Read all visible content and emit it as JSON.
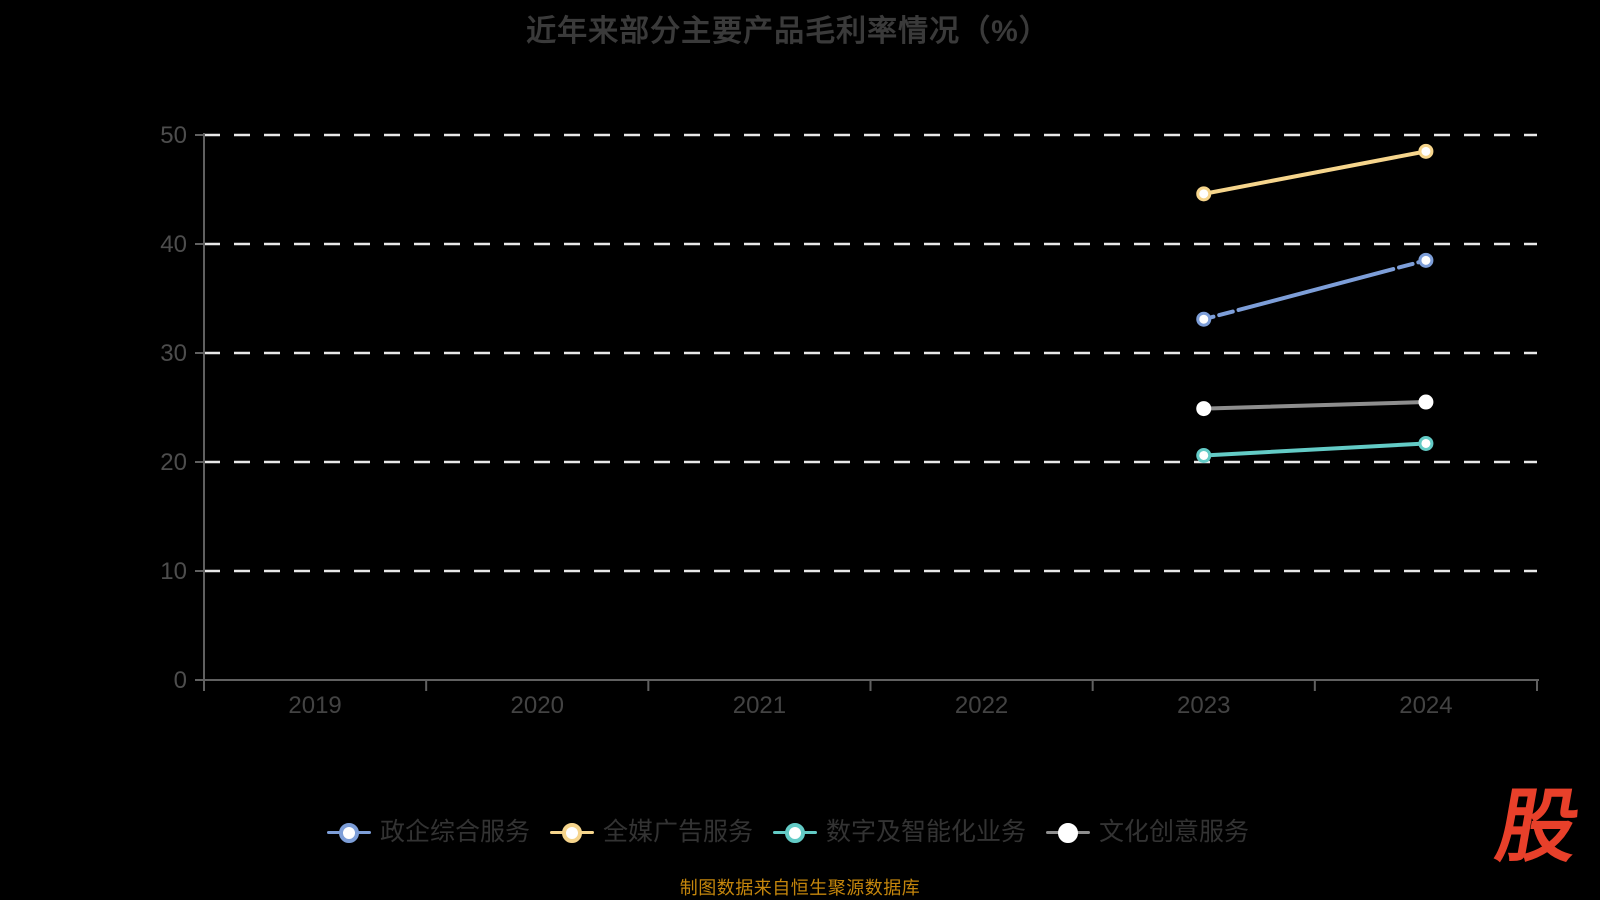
{
  "title": "近年来部分主要产品毛利率情况（%）",
  "source_note": "制图数据来自恒生聚源数据库",
  "logo_text": "股",
  "colors": {
    "background": "#000000",
    "title_text": "#3a3a3a",
    "legend_text": "#333333",
    "axis_line": "#606060",
    "y_axis_label": "#4d4d4d",
    "x_axis_label": "#434343",
    "gridline": "#e8e8e8",
    "source_text": "#c5860c",
    "logo_red": "#e8402a",
    "marker_fill": "#ffffff"
  },
  "chart_data": {
    "type": "line",
    "title": "近年来部分主要产品毛利率情况（%）",
    "categories": [
      "2019",
      "2020",
      "2021",
      "2022",
      "2023",
      "2024"
    ],
    "yticks": [
      0,
      10,
      20,
      30,
      40,
      50
    ],
    "ylim": [
      0,
      50
    ],
    "grid": "horizontal-dashed-white",
    "legend_position": "bottom",
    "series": [
      {
        "name": "政企综合服务",
        "color": "#7d9ed8",
        "marker_stroke": "#7d9ed8",
        "line_style": "dashed",
        "x": [
          "2023",
          "2024"
        ],
        "values": [
          33.1,
          38.5
        ]
      },
      {
        "name": "全媒广告服务",
        "color": "#f6d58c",
        "marker_stroke": "#f6d58c",
        "line_style": "solid",
        "x": [
          "2023",
          "2024"
        ],
        "values": [
          44.6,
          48.5
        ]
      },
      {
        "name": "数字及智能化业务",
        "color": "#63cbc6",
        "marker_stroke": "#63cbc6",
        "line_style": "solid",
        "x": [
          "2023",
          "2024"
        ],
        "values": [
          20.6,
          21.7
        ]
      },
      {
        "name": "文化创意服务",
        "color": "#8e8e8e",
        "marker_stroke": "#ffffff",
        "line_style": "solid",
        "x": [
          "2023",
          "2024"
        ],
        "values": [
          24.9,
          25.5
        ]
      }
    ]
  }
}
